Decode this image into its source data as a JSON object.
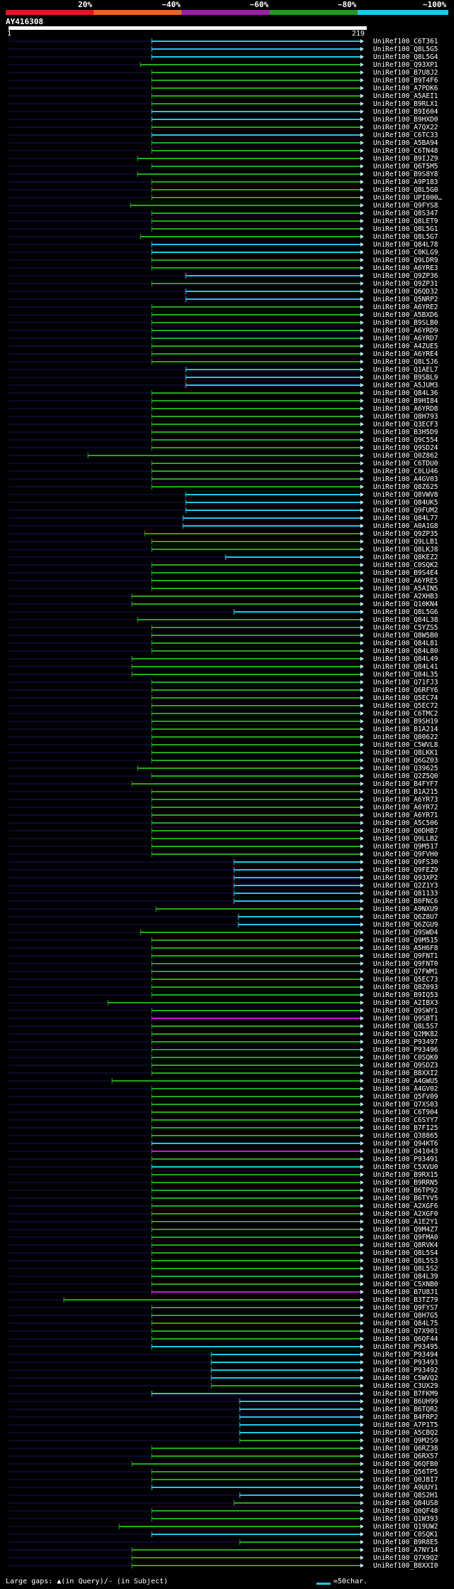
{
  "legend": {
    "items": [
      {
        "label": "20%",
        "color": "#e0162b"
      },
      {
        "label": "~40%",
        "color": "#e06b16"
      },
      {
        "label": "~60%",
        "color": "#9b1fa8"
      },
      {
        "label": "~80%",
        "color": "#1f9b1f"
      },
      {
        "label": "~100%",
        "color": "#1ec8e6"
      }
    ]
  },
  "query": {
    "name": "AY416308",
    "start": "1",
    "end": "219"
  },
  "footer": {
    "gaps_text": "Large gaps: ▲(in Query)/- (in Subject)",
    "scale_text": "=50char."
  },
  "chart_data": {
    "type": "alignment",
    "query_length": 219,
    "hits": [
      {
        "label": "UniRef100_C6T361",
        "color": "cyan"
      },
      {
        "label": "UniRef100_Q8L5G5",
        "color": "cyan"
      },
      {
        "label": "UniRef100_Q8L5G4",
        "color": "cyan"
      },
      {
        "label": "UniRef100_Q93XP1",
        "color": "green"
      },
      {
        "label": "UniRef100_B7U8J2",
        "color": "green"
      },
      {
        "label": "UniRef100_B9T4F6",
        "color": "green"
      },
      {
        "label": "UniRef100_A7PDK6",
        "color": "green"
      },
      {
        "label": "UniRef100_A5AEI1",
        "color": "green"
      },
      {
        "label": "UniRef100_B9RLX1",
        "color": "green"
      },
      {
        "label": "UniRef100_B9I604",
        "color": "cyan"
      },
      {
        "label": "UniRef100_B9HXD0",
        "color": "cyan"
      },
      {
        "label": "UniRef100_A7QX22",
        "color": "green"
      },
      {
        "label": "UniRef100_C6TC33",
        "color": "cyan"
      },
      {
        "label": "UniRef100_A5BA94",
        "color": "green"
      },
      {
        "label": "UniRef100_C6TN48",
        "color": "green"
      },
      {
        "label": "UniRef100_B9IJZ9",
        "color": "green"
      },
      {
        "label": "UniRef100_Q6T5M5",
        "color": "green"
      },
      {
        "label": "UniRef100_B9S8Y8",
        "color": "green"
      },
      {
        "label": "UniRef100_A9P183",
        "color": "green"
      },
      {
        "label": "UniRef100_Q8L5G0",
        "color": "green"
      },
      {
        "label": "UniRef100_UPI000…",
        "color": "green"
      },
      {
        "label": "UniRef100_Q9FYS8",
        "color": "green"
      },
      {
        "label": "UniRef100_Q8S347",
        "color": "green"
      },
      {
        "label": "UniRef100_Q8LET9",
        "color": "green"
      },
      {
        "label": "UniRef100_Q8L5G1",
        "color": "green"
      },
      {
        "label": "UniRef100_Q8L5G7",
        "color": "green"
      },
      {
        "label": "UniRef100_Q84L78",
        "color": "cyan"
      },
      {
        "label": "UniRef100_C0KLG9",
        "color": "cyan"
      },
      {
        "label": "UniRef100_Q9LDR9",
        "color": "green"
      },
      {
        "label": "UniRef100_A6YRE3",
        "color": "green"
      },
      {
        "label": "UniRef100_Q9ZP36",
        "color": "cyan"
      },
      {
        "label": "UniRef100_Q9ZP31",
        "color": "green"
      },
      {
        "label": "UniRef100_Q6QD32",
        "color": "cyan"
      },
      {
        "label": "UniRef100_Q5NRP2",
        "color": "cyan"
      },
      {
        "label": "UniRef100_A6YRE2",
        "color": "green"
      },
      {
        "label": "UniRef100_A5BXD6",
        "color": "green"
      },
      {
        "label": "UniRef100_B9SLB0",
        "color": "green"
      },
      {
        "label": "UniRef100_A6YRD9",
        "color": "green"
      },
      {
        "label": "UniRef100_A6YRD7",
        "color": "green"
      },
      {
        "label": "UniRef100_A4ZUE5",
        "color": "green"
      },
      {
        "label": "UniRef100_A6YRE4",
        "color": "green"
      },
      {
        "label": "UniRef100_Q8L5J6",
        "color": "green"
      },
      {
        "label": "UniRef100_Q1AEL7",
        "color": "cyan"
      },
      {
        "label": "UniRef100_B9SBL9",
        "color": "cyan"
      },
      {
        "label": "UniRef100_A5JUM3",
        "color": "cyan"
      },
      {
        "label": "UniRef100_Q84L36",
        "color": "green"
      },
      {
        "label": "UniRef100_B9HI84",
        "color": "green"
      },
      {
        "label": "UniRef100_A6YRD8",
        "color": "green"
      },
      {
        "label": "UniRef100_Q8H793",
        "color": "green"
      },
      {
        "label": "UniRef100_Q3ECF3",
        "color": "green"
      },
      {
        "label": "UniRef100_B3H5D9",
        "color": "green"
      },
      {
        "label": "UniRef100_Q9C554",
        "color": "green"
      },
      {
        "label": "UniRef100_Q9SD24",
        "color": "green"
      },
      {
        "label": "UniRef100_Q0Z862",
        "color": "green"
      },
      {
        "label": "UniRef100_C6TDU0",
        "color": "green"
      },
      {
        "label": "UniRef100_C0LU46",
        "color": "green"
      },
      {
        "label": "UniRef100_A4GV03",
        "color": "green"
      },
      {
        "label": "UniRef100_Q8Z625",
        "color": "green"
      },
      {
        "label": "UniRef100_Q8VWV8",
        "color": "cyan"
      },
      {
        "label": "UniRef100_Q84UK5",
        "color": "cyan"
      },
      {
        "label": "UniRef100_Q9FUM2",
        "color": "cyan"
      },
      {
        "label": "UniRef100_Q84L77",
        "color": "cyan"
      },
      {
        "label": "UniRef100_A0A1G8",
        "color": "cyan"
      },
      {
        "label": "UniRef100_Q9ZP35",
        "color": "green"
      },
      {
        "label": "UniRef100_Q9LLB1",
        "color": "green"
      },
      {
        "label": "UniRef100_Q8LKJ8",
        "color": "green"
      },
      {
        "label": "UniRef100_Q8KEZ2",
        "color": "cyan"
      },
      {
        "label": "UniRef100_C0SQK2",
        "color": "green"
      },
      {
        "label": "UniRef100_B9S4E4",
        "color": "green"
      },
      {
        "label": "UniRef100_A6YRE5",
        "color": "green"
      },
      {
        "label": "UniRef100_A5AIN5",
        "color": "green"
      },
      {
        "label": "UniRef100_A2XHB3",
        "color": "green"
      },
      {
        "label": "UniRef100_Q10KN4",
        "color": "green"
      },
      {
        "label": "UniRef100_Q8L5G6",
        "color": "cyan"
      },
      {
        "label": "UniRef100_Q84L38",
        "color": "green"
      },
      {
        "label": "UniRef100_C5YZS5",
        "color": "green"
      },
      {
        "label": "UniRef100_Q8W5B0",
        "color": "green"
      },
      {
        "label": "UniRef100_Q84L81",
        "color": "green"
      },
      {
        "label": "UniRef100_Q84L80",
        "color": "green"
      },
      {
        "label": "UniRef100_Q84L49",
        "color": "green"
      },
      {
        "label": "UniRef100_Q84L41",
        "color": "green"
      },
      {
        "label": "UniRef100_Q84L35",
        "color": "green"
      },
      {
        "label": "UniRef100_Q71FJ3",
        "color": "green"
      },
      {
        "label": "UniRef100_Q6RFY6",
        "color": "green"
      },
      {
        "label": "UniRef100_Q5EC74",
        "color": "green"
      },
      {
        "label": "UniRef100_Q5EC72",
        "color": "green"
      },
      {
        "label": "UniRef100_C6TMC2",
        "color": "green"
      },
      {
        "label": "UniRef100_B9SH19",
        "color": "green"
      },
      {
        "label": "UniRef100_B1A214",
        "color": "green"
      },
      {
        "label": "UniRef100_Q80622",
        "color": "green"
      },
      {
        "label": "UniRef100_C5WVL8",
        "color": "green"
      },
      {
        "label": "UniRef100_Q8LKK1",
        "color": "green"
      },
      {
        "label": "UniRef100_Q6GZ03",
        "color": "green"
      },
      {
        "label": "UniRef100_Q39625",
        "color": "green"
      },
      {
        "label": "UniRef100_Q2Z5Q0",
        "color": "green"
      },
      {
        "label": "UniRef100_B4FYF7",
        "color": "green"
      },
      {
        "label": "UniRef100_B1A215",
        "color": "green"
      },
      {
        "label": "UniRef100_A6YR73",
        "color": "green"
      },
      {
        "label": "UniRef100_A6YR72",
        "color": "green"
      },
      {
        "label": "UniRef100_A6YR71",
        "color": "green"
      },
      {
        "label": "UniRef100_A5C506",
        "color": "green"
      },
      {
        "label": "UniRef100_Q0DHB7",
        "color": "green"
      },
      {
        "label": "UniRef100_Q9LLB2",
        "color": "green"
      },
      {
        "label": "UniRef100_Q9M517",
        "color": "green"
      },
      {
        "label": "UniRef100_Q9FVH0",
        "color": "green"
      },
      {
        "label": "UniRef100_Q9FS30",
        "color": "cyan"
      },
      {
        "label": "UniRef100_Q9FEZ9",
        "color": "cyan"
      },
      {
        "label": "UniRef100_Q93XP2",
        "color": "cyan"
      },
      {
        "label": "UniRef100_Q2Z1Y3",
        "color": "cyan"
      },
      {
        "label": "UniRef100_Q81133",
        "color": "cyan"
      },
      {
        "label": "UniRef100_B0FNC6",
        "color": "cyan"
      },
      {
        "label": "UniRef100_A9NXU9",
        "color": "green"
      },
      {
        "label": "UniRef100_Q6Z8U7",
        "color": "cyan"
      },
      {
        "label": "UniRef100_Q6ZGU9",
        "color": "cyan"
      },
      {
        "label": "UniRef100_Q9SWD4",
        "color": "green"
      },
      {
        "label": "UniRef100_Q9M515",
        "color": "green"
      },
      {
        "label": "UniRef100_A5H6F8",
        "color": "green"
      },
      {
        "label": "UniRef100_Q9FNT1",
        "color": "green"
      },
      {
        "label": "UniRef100_Q9FNT0",
        "color": "green"
      },
      {
        "label": "UniRef100_Q7FWM1",
        "color": "green"
      },
      {
        "label": "UniRef100_Q5EC73",
        "color": "green"
      },
      {
        "label": "UniRef100_Q8Z093",
        "color": "green"
      },
      {
        "label": "UniRef100_B9IQ53",
        "color": "green"
      },
      {
        "label": "UniRef100_A2IBX3",
        "color": "green"
      },
      {
        "label": "UniRef100_Q9SWY1",
        "color": "green"
      },
      {
        "label": "UniRef100_Q9SBT1",
        "color": "magenta"
      },
      {
        "label": "UniRef100_Q8L5S7",
        "color": "green"
      },
      {
        "label": "UniRef100_Q2MK82",
        "color": "green"
      },
      {
        "label": "UniRef100_P93497",
        "color": "green"
      },
      {
        "label": "UniRef100_P93496",
        "color": "green"
      },
      {
        "label": "UniRef100_C0SQK0",
        "color": "green"
      },
      {
        "label": "UniRef100_Q9SDZ3",
        "color": "green"
      },
      {
        "label": "UniRef100_B8XXI2",
        "color": "green"
      },
      {
        "label": "UniRef100_A4GWU5",
        "color": "green"
      },
      {
        "label": "UniRef100_A4GV02",
        "color": "green"
      },
      {
        "label": "UniRef100_Q5FV09",
        "color": "green"
      },
      {
        "label": "UniRef100_Q7XS03",
        "color": "green"
      },
      {
        "label": "UniRef100_C6T904",
        "color": "green"
      },
      {
        "label": "UniRef100_C6SYY7",
        "color": "green"
      },
      {
        "label": "UniRef100_B7FI25",
        "color": "green"
      },
      {
        "label": "UniRef100_Q38865",
        "color": "green"
      },
      {
        "label": "UniRef100_Q94KT6",
        "color": "cyan"
      },
      {
        "label": "UniRef100_O41043",
        "color": "magenta"
      },
      {
        "label": "UniRef100_P93491",
        "color": "green"
      },
      {
        "label": "UniRef100_C5XVU0",
        "color": "cyan"
      },
      {
        "label": "UniRef100_B9RX15",
        "color": "green"
      },
      {
        "label": "UniRef100_B9RRN5",
        "color": "green"
      },
      {
        "label": "UniRef100_B6TP92",
        "color": "green"
      },
      {
        "label": "UniRef100_B6TYV5",
        "color": "green"
      },
      {
        "label": "UniRef100_A2XGF6",
        "color": "green"
      },
      {
        "label": "UniRef100_A2XGF0",
        "color": "green"
      },
      {
        "label": "UniRef100_A1E2Y1",
        "color": "green"
      },
      {
        "label": "UniRef100_Q9M4Z7",
        "color": "green"
      },
      {
        "label": "UniRef100_Q9FMA0",
        "color": "green"
      },
      {
        "label": "UniRef100_Q8RVK4",
        "color": "green"
      },
      {
        "label": "UniRef100_Q8L5S4",
        "color": "green"
      },
      {
        "label": "UniRef100_Q8L5S3",
        "color": "green"
      },
      {
        "label": "UniRef100_Q8L5S2",
        "color": "green"
      },
      {
        "label": "UniRef100_Q84L39",
        "color": "green"
      },
      {
        "label": "UniRef100_C5XNB0",
        "color": "green"
      },
      {
        "label": "UniRef100_B7U8J1",
        "color": "magenta"
      },
      {
        "label": "UniRef100_B3TZ79",
        "color": "green"
      },
      {
        "label": "UniRef100_Q9FYS7",
        "color": "green"
      },
      {
        "label": "UniRef100_Q8H7G5",
        "color": "green"
      },
      {
        "label": "UniRef100_Q84L75",
        "color": "green"
      },
      {
        "label": "UniRef100_Q7X901",
        "color": "green"
      },
      {
        "label": "UniRef100_Q6QF44",
        "color": "green"
      },
      {
        "label": "UniRef100_P93495",
        "color": "cyan"
      },
      {
        "label": "UniRef100_P93494",
        "color": "cyan"
      },
      {
        "label": "UniRef100_P93493",
        "color": "cyan"
      },
      {
        "label": "UniRef100_P93492",
        "color": "cyan"
      },
      {
        "label": "UniRef100_C5WVQ2",
        "color": "cyan"
      },
      {
        "label": "UniRef100_C3UX29",
        "color": "green"
      },
      {
        "label": "UniRef100_B7FKM9",
        "color": "cyan"
      },
      {
        "label": "UniRef100_B6UH99",
        "color": "cyan"
      },
      {
        "label": "UniRef100_B6TQR2",
        "color": "cyan"
      },
      {
        "label": "UniRef100_B4FRP2",
        "color": "cyan"
      },
      {
        "label": "UniRef100_A7P1T5",
        "color": "cyan"
      },
      {
        "label": "UniRef100_A5CBQ2",
        "color": "cyan"
      },
      {
        "label": "UniRef100_Q9M2S9",
        "color": "green"
      },
      {
        "label": "UniRef100_Q6RZ38",
        "color": "green"
      },
      {
        "label": "UniRef100_Q6RX57",
        "color": "green"
      },
      {
        "label": "UniRef100_Q6QFB0",
        "color": "green"
      },
      {
        "label": "UniRef100_Q56TP5",
        "color": "green"
      },
      {
        "label": "UniRef100_Q0JBI7",
        "color": "green"
      },
      {
        "label": "UniRef100_A9UUY1",
        "color": "cyan"
      },
      {
        "label": "UniRef100_Q8S2H1",
        "color": "cyan"
      },
      {
        "label": "UniRef100_Q84US8",
        "color": "green"
      },
      {
        "label": "UniRef100_Q0QF48",
        "color": "green"
      },
      {
        "label": "UniRef100_Q1W393",
        "color": "green"
      },
      {
        "label": "UniRef100_Q19UW2",
        "color": "green"
      },
      {
        "label": "UniRef100_C0SQK1",
        "color": "cyan"
      },
      {
        "label": "UniRef100_B9R8E5",
        "color": "green"
      },
      {
        "label": "UniRef100_A7NY14",
        "color": "green"
      },
      {
        "label": "UniRef100_Q7X9Q2",
        "color": "green"
      },
      {
        "label": "UniRef100_B8XXI0",
        "color": "green"
      }
    ]
  }
}
